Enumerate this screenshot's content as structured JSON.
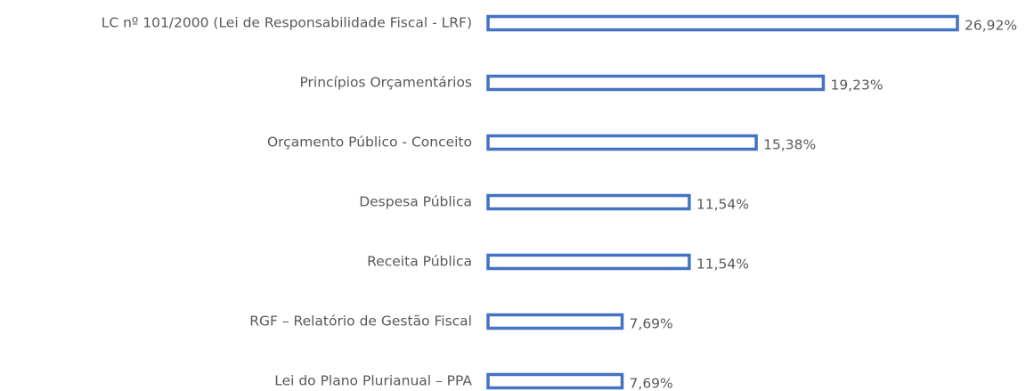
{
  "chart_data": {
    "type": "bar",
    "orientation": "horizontal",
    "categories": [
      "LC nº 101/2000 (Lei de Responsabilidade Fiscal - LRF)",
      "Princípios Orçamentários",
      "Orçamento Público - Conceito",
      "Despesa Pública",
      "Receita Pública",
      "RGF – Relatório de Gestão Fiscal",
      "Lei do Plano Plurianual – PPA"
    ],
    "values": [
      26.92,
      19.23,
      15.38,
      11.54,
      11.54,
      7.69,
      7.69
    ],
    "value_labels": [
      "26,92%",
      "19,23%",
      "15,38%",
      "11,54%",
      "11,54%",
      "7,69%",
      "7,69%"
    ],
    "color": "#4472c4"
  }
}
